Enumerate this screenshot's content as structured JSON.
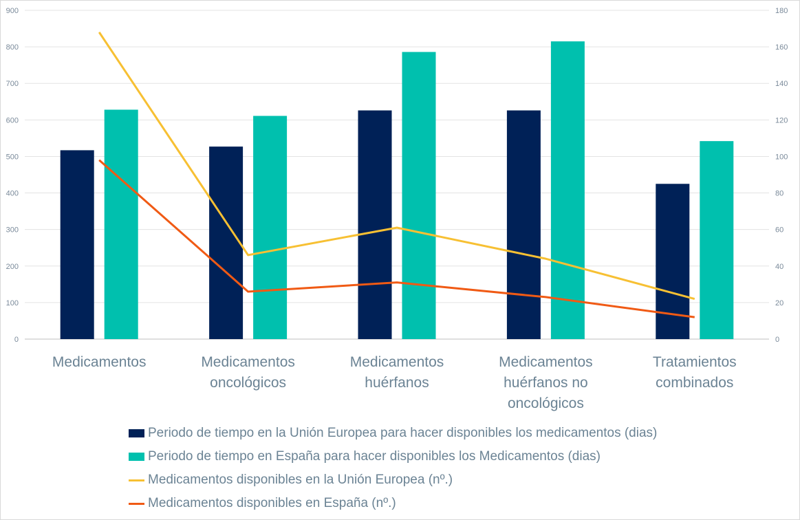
{
  "chart_data": {
    "type": "bar",
    "title": "",
    "categories": [
      [
        "Medicamentos"
      ],
      [
        "Medicamentos",
        "oncológicos"
      ],
      [
        "Medicamentos",
        "huérfanos"
      ],
      [
        "Medicamentos",
        "huérfanos no",
        "oncológicos"
      ],
      [
        "Tratamientos",
        "combinados"
      ]
    ],
    "series": [
      {
        "name": "Periodo de tiempo en la Unión Europea para hacer disponibles los medicamentos (dias)",
        "type": "bar",
        "axis": "left",
        "color": "#002157",
        "values": [
          517,
          527,
          626,
          626,
          425
        ]
      },
      {
        "name": "Periodo de tiempo en España para hacer disponibles los Medicamentos (dias)",
        "type": "bar",
        "axis": "left",
        "color": "#00c0ae",
        "values": [
          628,
          611,
          786,
          815,
          542
        ]
      },
      {
        "name": "Medicamentos disponibles en la Unión Europea (nº.)",
        "type": "line",
        "axis": "right",
        "color": "#f7c033",
        "values": [
          168,
          46,
          61,
          44,
          22
        ]
      },
      {
        "name": "Medicamentos disponibles en España (nº.)",
        "type": "line",
        "axis": "right",
        "color": "#f05a14",
        "values": [
          98,
          26,
          31,
          23,
          12
        ]
      }
    ],
    "y_left": {
      "min": 0,
      "max": 900,
      "ticks": [
        0,
        100,
        200,
        300,
        400,
        500,
        600,
        700,
        800,
        900
      ]
    },
    "y_right": {
      "min": 0,
      "max": 180,
      "ticks": [
        0,
        20,
        40,
        60,
        80,
        100,
        120,
        140,
        160,
        180
      ]
    },
    "grid": true,
    "legend_position": "bottom"
  }
}
